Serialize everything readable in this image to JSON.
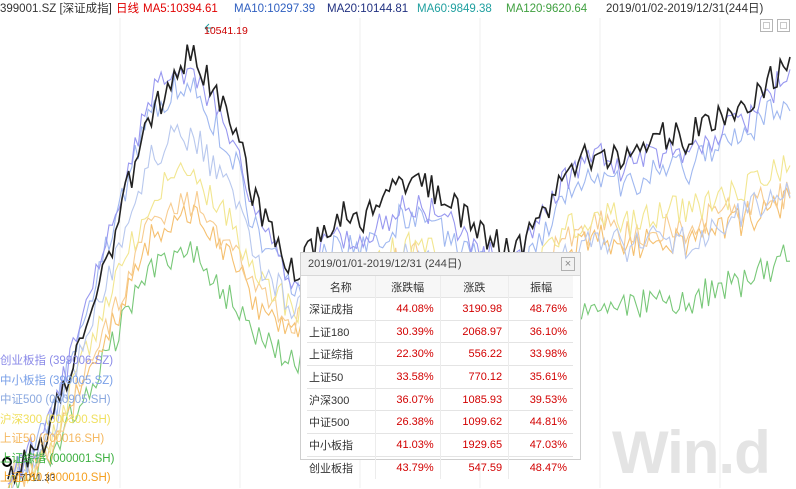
{
  "header": {
    "code": "399001.SZ [深证成指]",
    "period": "日线",
    "ma5": "MA5:10394.61",
    "ma10": "MA10:10297.39",
    "ma20": "MA20:10144.81",
    "ma60": "MA60:9849.38",
    "ma120": "MA120:9620.64",
    "range": "2019/01/02-2019/12/31(244日)"
  },
  "annotations": {
    "max_label": "10541.19",
    "min_label": "7011.33"
  },
  "legend": [
    {
      "label": "创业板指 (399006.SZ)",
      "color": "#8a8ae8"
    },
    {
      "label": "中小板指 (399005.SZ)",
      "color": "#7aa0e8"
    },
    {
      "label": "中证500 (000905.SH)",
      "color": "#8aa8e0"
    },
    {
      "label": "沪深300 (000300.SH)",
      "color": "#f0e060"
    },
    {
      "label": "上证50 (000016.SH)",
      "color": "#f5b860"
    },
    {
      "label": "上证综指 (000001.SH)",
      "color": "#3cb040"
    },
    {
      "label": "上证180 (000010.SH)",
      "color": "#f5a020"
    }
  ],
  "stats_panel": {
    "title": "2019/01/01-2019/12/31 (244日)",
    "close_icon": "close-icon",
    "columns": [
      "名称",
      "涨跌幅",
      "涨跌",
      "振幅"
    ],
    "rows": [
      [
        "深证成指",
        "44.08%",
        "3190.98",
        "48.76%"
      ],
      [
        "上证180",
        "30.39%",
        "2068.97",
        "36.10%"
      ],
      [
        "上证综指",
        "22.30%",
        "556.22",
        "33.98%"
      ],
      [
        "上证50",
        "33.58%",
        "770.12",
        "35.61%"
      ],
      [
        "沪深300",
        "36.07%",
        "1085.93",
        "39.53%"
      ],
      [
        "中证500",
        "26.38%",
        "1099.62",
        "44.81%"
      ],
      [
        "中小板指",
        "41.03%",
        "1929.65",
        "47.03%"
      ],
      [
        "创业板指",
        "43.79%",
        "547.59",
        "48.47%"
      ]
    ]
  },
  "watermark": "Win.d",
  "colors": {
    "main_line": "#222222",
    "up_text": "#d20000",
    "ma5": "#e00000",
    "ma10": "#3060c0",
    "ma20": "#203080",
    "ma60": "#20a0a0",
    "ma120": "#40a040"
  },
  "chart_data": {
    "type": "line",
    "title": "",
    "x_range": [
      "2019/01/02",
      "2019/12/31"
    ],
    "ylim": [
      7011.33,
      10541.19
    ],
    "series": [
      {
        "name": "深证成指",
        "values": [
          7011,
          7150,
          7400,
          7900,
          8400,
          8900,
          9500,
          10000,
          10300,
          10541,
          10200,
          9900,
          9300,
          9000,
          8700,
          8950,
          9200,
          9100,
          9300,
          9450,
          9500,
          9350,
          9200,
          9050,
          8900,
          8950,
          9200,
          9500,
          9650,
          9700,
          9600,
          9750,
          9850,
          9800,
          9950,
          10050,
          10100,
          10300,
          10394
        ]
      },
      {
        "name": "创业板指",
        "values": [
          7011,
          7200,
          7500,
          8000,
          8600,
          9100,
          9700,
          10200,
          10350,
          10400,
          10100,
          9800,
          9150,
          8900,
          8600,
          8850,
          9050,
          8950,
          9100,
          9250,
          9300,
          9150,
          9050,
          8900,
          8800,
          8850,
          9150,
          9450,
          9600,
          9650,
          9550,
          9650,
          9700,
          9650,
          9800,
          9900,
          9950,
          10200,
          10300
        ]
      },
      {
        "name": "中小板指",
        "values": [
          7011,
          7180,
          7450,
          7950,
          8500,
          9000,
          9550,
          10050,
          10200,
          10250,
          9950,
          9650,
          9050,
          8800,
          8550,
          8750,
          8950,
          8850,
          9000,
          9150,
          9200,
          9050,
          8950,
          8800,
          8700,
          8750,
          9000,
          9300,
          9450,
          9500,
          9400,
          9500,
          9600,
          9550,
          9700,
          9800,
          9850,
          10050,
          10150
        ]
      },
      {
        "name": "中证500",
        "values": [
          7011,
          7150,
          7350,
          7800,
          8250,
          8700,
          9200,
          9650,
          9800,
          9850,
          9550,
          9300,
          8800,
          8600,
          8400,
          8550,
          8700,
          8600,
          8700,
          8800,
          8850,
          8700,
          8600,
          8500,
          8450,
          8500,
          8650,
          8850,
          8950,
          9000,
          8900,
          8950,
          9000,
          8950,
          9050,
          9150,
          9200,
          9350,
          9450
        ]
      },
      {
        "name": "沪深300",
        "values": [
          7011,
          7100,
          7300,
          7700,
          8100,
          8500,
          8950,
          9350,
          9500,
          9550,
          9300,
          9100,
          8700,
          8550,
          8400,
          8550,
          8700,
          8650,
          8800,
          8900,
          8950,
          8850,
          8750,
          8650,
          8600,
          8650,
          8850,
          9050,
          9150,
          9200,
          9100,
          9150,
          9250,
          9200,
          9300,
          9350,
          9400,
          9500,
          9600
        ]
      },
      {
        "name": "上证50",
        "values": [
          7011,
          7080,
          7250,
          7600,
          7950,
          8300,
          8750,
          9100,
          9250,
          9300,
          9050,
          8900,
          8550,
          8450,
          8300,
          8450,
          8600,
          8550,
          8700,
          8800,
          8850,
          8750,
          8650,
          8600,
          8550,
          8600,
          8800,
          8950,
          9050,
          9100,
          9000,
          9050,
          9100,
          9050,
          9150,
          9200,
          9250,
          9300,
          9380
        ]
      },
      {
        "name": "上证综指",
        "values": [
          7011,
          7050,
          7200,
          7500,
          7800,
          8100,
          8450,
          8750,
          8850,
          8900,
          8650,
          8450,
          8150,
          8050,
          7950,
          8050,
          8150,
          8100,
          8200,
          8250,
          8300,
          8200,
          8150,
          8100,
          8050,
          8100,
          8250,
          8350,
          8400,
          8450,
          8400,
          8450,
          8500,
          8450,
          8550,
          8600,
          8650,
          8750,
          8850
        ]
      },
      {
        "name": "上证180",
        "values": [
          7011,
          7070,
          7230,
          7560,
          7900,
          8230,
          8650,
          9000,
          9150,
          9200,
          8950,
          8800,
          8450,
          8350,
          8200,
          8350,
          8500,
          8450,
          8600,
          8700,
          8750,
          8650,
          8550,
          8500,
          8450,
          8500,
          8700,
          8850,
          8950,
          9000,
          8900,
          8950,
          9000,
          8950,
          9050,
          9100,
          9150,
          9200,
          9280
        ]
      }
    ]
  }
}
